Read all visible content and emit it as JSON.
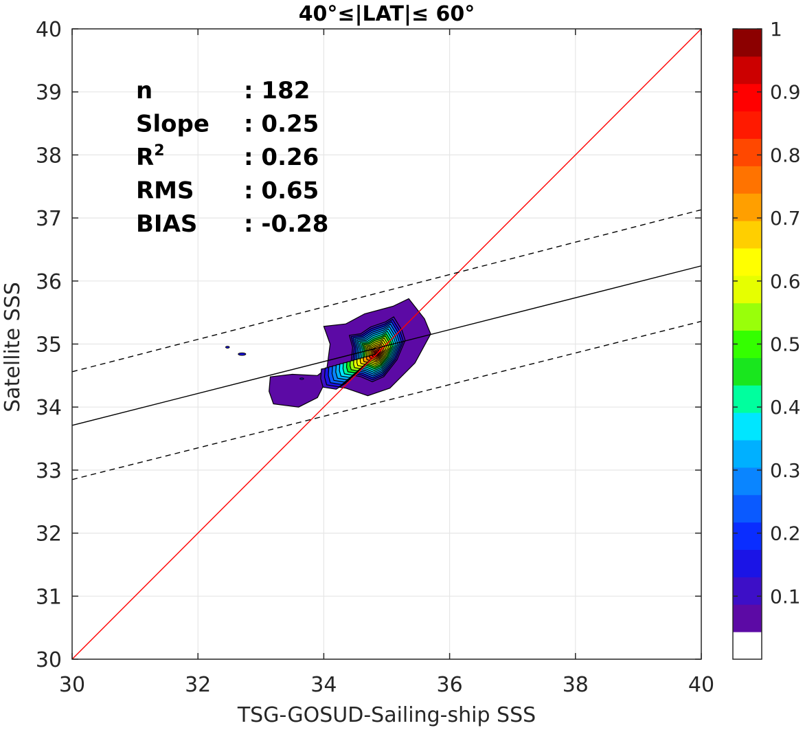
{
  "chart_data": {
    "type": "contour",
    "title": "40°≤|LAT|≤ 60°",
    "xlabel": "TSG-GOSUD-Sailing-ship SSS",
    "ylabel": "Satellite SSS",
    "xlim": [
      30,
      40
    ],
    "ylim": [
      30,
      40
    ],
    "xticks": [
      "30",
      "32",
      "34",
      "36",
      "38",
      "40"
    ],
    "yticks": [
      "30",
      "31",
      "32",
      "33",
      "34",
      "35",
      "36",
      "37",
      "38",
      "39",
      "40"
    ],
    "grid": true,
    "stats": [
      {
        "label": "n",
        "value": ": 182"
      },
      {
        "label": "Slope",
        "value": ": 0.25"
      },
      {
        "label": "R",
        "label_sup": "2",
        "value": ": 0.26"
      },
      {
        "label": "RMS",
        "value": ": 0.65"
      },
      {
        "label": "BIAS",
        "value": ": -0.28"
      }
    ],
    "lines": {
      "one_to_one": {
        "x": [
          30,
          40
        ],
        "y": [
          30,
          40
        ],
        "color": "#ff0000"
      },
      "fit": {
        "x": [
          30,
          40
        ],
        "y": [
          33.71,
          36.24
        ],
        "color": "#000000"
      },
      "fit_upper": {
        "x": [
          30,
          40
        ],
        "y": [
          34.56,
          37.13
        ],
        "color": "#000000",
        "dash": true
      },
      "fit_lower": {
        "x": [
          30,
          40
        ],
        "y": [
          32.85,
          35.36
        ],
        "color": "#000000",
        "dash": true
      }
    },
    "density_peak": {
      "x": 34.85,
      "y": 34.85,
      "value": 1.0
    },
    "density_outer_contour": [
      [
        33.15,
        34.48
      ],
      [
        33.5,
        34.52
      ],
      [
        33.9,
        34.5
      ],
      [
        34.05,
        34.62
      ],
      [
        34.1,
        35.0
      ],
      [
        34.0,
        35.28
      ],
      [
        34.35,
        35.32
      ],
      [
        34.65,
        35.48
      ],
      [
        35.1,
        35.6
      ],
      [
        35.35,
        35.72
      ],
      [
        35.6,
        35.4
      ],
      [
        35.7,
        35.16
      ],
      [
        35.45,
        34.7
      ],
      [
        35.05,
        34.3
      ],
      [
        34.7,
        34.18
      ],
      [
        34.35,
        34.3
      ],
      [
        34.0,
        34.35
      ],
      [
        33.9,
        34.15
      ],
      [
        33.6,
        34.0
      ],
      [
        33.2,
        34.05
      ],
      [
        33.13,
        34.25
      ]
    ],
    "density_islands": [
      {
        "x": 32.7,
        "y": 34.84,
        "rx": 0.06,
        "ry": 0.02
      },
      {
        "x": 32.47,
        "y": 34.95,
        "rx": 0.03,
        "ry": 0.015
      },
      {
        "x": 33.65,
        "y": 34.45,
        "rx": 0.03,
        "ry": 0.012
      }
    ],
    "colorbar": {
      "ticks": [
        "0.1",
        "0.2",
        "0.3",
        "0.4",
        "0.5",
        "0.6",
        "0.7",
        "0.8",
        "0.9",
        "1"
      ],
      "tick_values": [
        0.1,
        0.2,
        0.3,
        0.4,
        0.5,
        0.6,
        0.7,
        0.8,
        0.9,
        1.0
      ],
      "range": [
        0,
        1
      ],
      "colors": [
        "#ffffff",
        "#5c0aa5",
        "#3d0fc7",
        "#1b14e6",
        "#0a2dff",
        "#0a5aff",
        "#0a85ff",
        "#00b0ff",
        "#00e6ff",
        "#00ff9e",
        "#19e61e",
        "#34ff00",
        "#99ff0a",
        "#e6ff00",
        "#ffff00",
        "#ffcf00",
        "#ff9f00",
        "#ff7300",
        "#ff4800",
        "#ff1a00",
        "#ff0000",
        "#cc0000",
        "#8c0000"
      ]
    }
  }
}
